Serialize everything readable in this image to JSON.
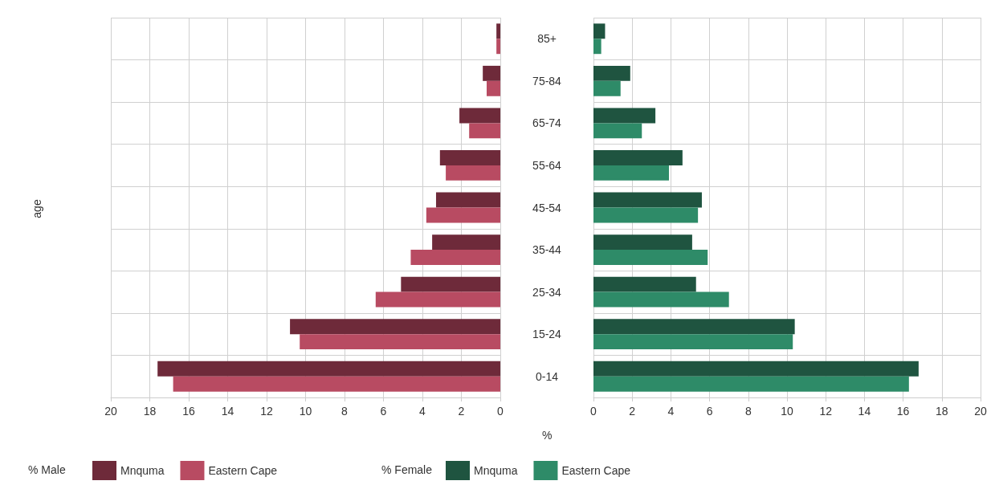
{
  "chart_data": [
    {
      "type": "bar",
      "orientation": "horizontal",
      "xlabel": "%",
      "ylabel": "age",
      "legend_title": "% Male",
      "legend": "bottom",
      "grid": true,
      "categories": [
        "85+",
        "75-84",
        "65-74",
        "55-64",
        "45-54",
        "35-44",
        "25-34",
        "15-24",
        "0-14"
      ],
      "xlim": [
        20,
        0
      ],
      "xticks": [
        20,
        18,
        16,
        14,
        12,
        10,
        8,
        6,
        4,
        2,
        0
      ],
      "series": [
        {
          "name": "Mnquma",
          "color": "#6e2a3a",
          "values": [
            0.2,
            0.9,
            2.1,
            3.1,
            3.3,
            3.5,
            5.1,
            10.8,
            17.6
          ]
        },
        {
          "name": "Eastern Cape",
          "color": "#b84b62",
          "values": [
            0.2,
            0.7,
            1.6,
            2.8,
            3.8,
            4.6,
            6.4,
            10.3,
            16.8
          ]
        }
      ]
    },
    {
      "type": "bar",
      "orientation": "horizontal",
      "legend_title": "% Female",
      "legend": "bottom",
      "grid": true,
      "categories": [
        null,
        null,
        null,
        null,
        null,
        null,
        null,
        null,
        null
      ],
      "xlim": [
        0,
        20
      ],
      "xticks": [
        0,
        2,
        4,
        6,
        8,
        10,
        12,
        14,
        16,
        18,
        20
      ],
      "series": [
        {
          "name": "Mnquma",
          "color": "#1f5440",
          "values": [
            0.6,
            1.9,
            3.2,
            4.6,
            5.6,
            5.1,
            5.3,
            10.4,
            16.8
          ]
        },
        {
          "name": "Eastern Cape",
          "color": "#2e8b68",
          "values": [
            0.4,
            1.4,
            2.5,
            3.9,
            5.4,
            5.9,
            7.0,
            10.3,
            16.3
          ]
        }
      ]
    }
  ]
}
